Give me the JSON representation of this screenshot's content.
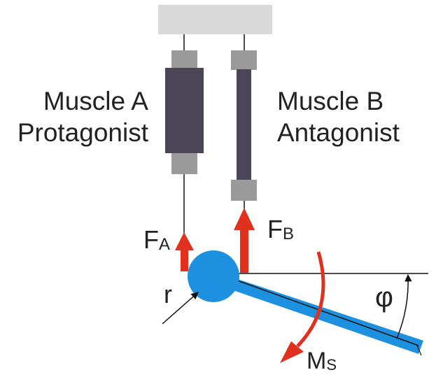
{
  "labels": {
    "muscle_a_name": "Muscle A",
    "muscle_a_role": "Protagonist",
    "muscle_b_name": "Muscle B",
    "muscle_b_role": "Antagonist",
    "force_a_main": "F",
    "force_a_sub": "A",
    "force_b_main": "F",
    "force_b_sub": "B",
    "moment_main": "M",
    "moment_sub": "S",
    "radius": "r",
    "angle": "φ"
  },
  "colors": {
    "ceiling": "#d9d9d9",
    "muscle_body": "#4a4658",
    "connector": "#9a9a9a",
    "force_arrow": "#e0301e",
    "joint": "#1e90e0",
    "lever": "#1e90e0",
    "line": "#111111"
  }
}
